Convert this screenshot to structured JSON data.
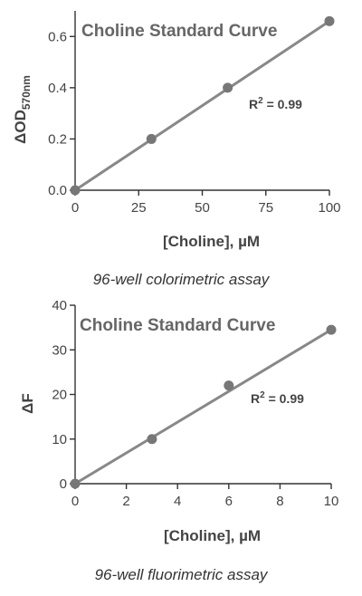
{
  "chart_data": [
    {
      "type": "scatter",
      "title": "Choline Standard Curve",
      "xlabel": "[Choline], µM",
      "ylabel_main": "ΔOD",
      "ylabel_sub": "570nm",
      "xlim": [
        0,
        100
      ],
      "ylim": [
        0,
        0.7
      ],
      "x_ticks": [
        0,
        25,
        50,
        75,
        100
      ],
      "x_tick_labels": [
        "0",
        "25",
        "50",
        "75",
        "100"
      ],
      "y_ticks": [
        0,
        0.2,
        0.4,
        0.6
      ],
      "y_tick_labels": [
        "0.0",
        "0.2",
        "0.4",
        "0.6"
      ],
      "series": [
        {
          "x": [
            0,
            30,
            60,
            100
          ],
          "y": [
            0.0,
            0.2,
            0.4,
            0.66
          ]
        }
      ],
      "fit_line": {
        "x": [
          0,
          100
        ],
        "y": [
          0.0,
          0.66
        ]
      },
      "r2_label": "R",
      "r2_sup": "2",
      "r2_value": " = 0.99",
      "caption": "96-well colorimetric assay",
      "point_color": "#777777",
      "line_color": "#888888",
      "grid": false
    },
    {
      "type": "scatter",
      "title": "Choline Standard Curve",
      "xlabel": "[Choline], µM",
      "ylabel_main": "ΔF",
      "ylabel_sub": "",
      "xlim": [
        0,
        10
      ],
      "ylim": [
        0,
        40
      ],
      "x_ticks": [
        0,
        2,
        4,
        6,
        8,
        10
      ],
      "x_tick_labels": [
        "0",
        "2",
        "4",
        "6",
        "8",
        "10"
      ],
      "y_ticks": [
        0,
        10,
        20,
        30,
        40
      ],
      "y_tick_labels": [
        "0",
        "10",
        "20",
        "30",
        "40"
      ],
      "series": [
        {
          "x": [
            0,
            3,
            6,
            10
          ],
          "y": [
            0,
            10,
            22,
            34.5
          ]
        }
      ],
      "fit_line": {
        "x": [
          0,
          10
        ],
        "y": [
          0,
          34.5
        ]
      },
      "r2_label": "R",
      "r2_sup": "2",
      "r2_value": " = 0.99",
      "caption": "96-well fluorimetric assay",
      "point_color": "#777777",
      "line_color": "#888888",
      "grid": false
    }
  ]
}
